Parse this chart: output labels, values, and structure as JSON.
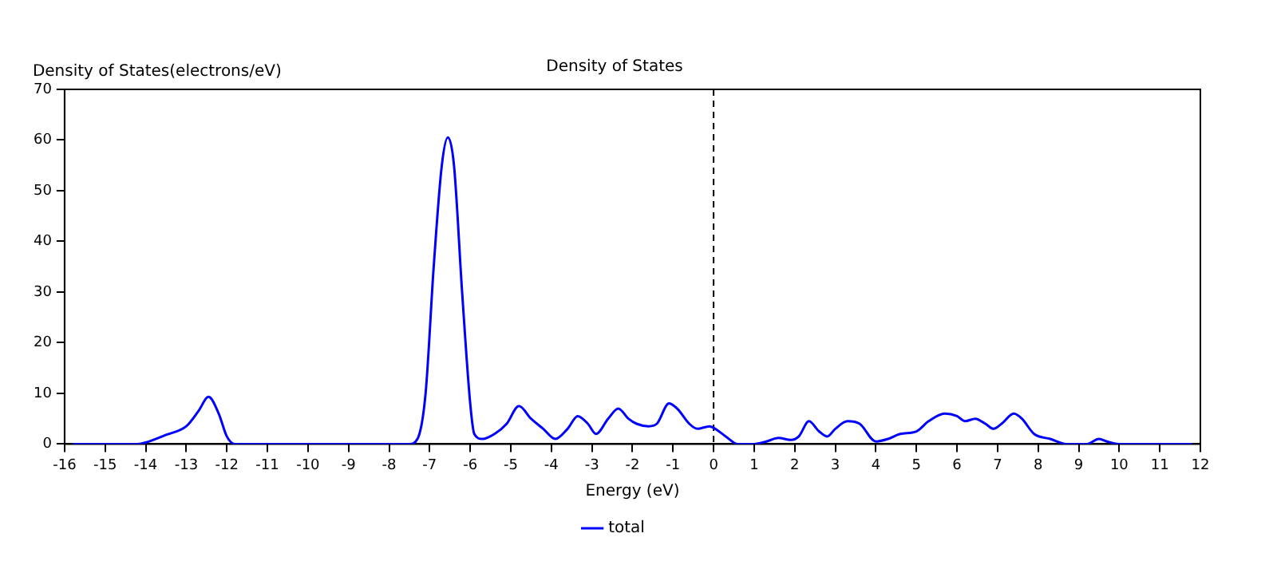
{
  "chart_data": {
    "type": "line",
    "title": "Density of States",
    "ylabel": "Density of States(electrons/eV)",
    "xlabel": "Energy (eV)",
    "xlim": [
      -16,
      12
    ],
    "xticks": [
      -16,
      -15,
      -14,
      -13,
      -12,
      -11,
      -10,
      -9,
      -8,
      -7,
      -6,
      -5,
      -4,
      -3,
      -2,
      -1,
      0,
      1,
      2,
      3,
      4,
      5,
      6,
      7,
      8,
      9,
      10,
      11,
      12
    ],
    "ylim": [
      0,
      70
    ],
    "yticks": [
      0,
      10,
      20,
      30,
      40,
      50,
      60,
      70
    ],
    "grid": false,
    "legend": "bottom",
    "marker": "none",
    "line_style": "solid",
    "ref_lines": [
      {
        "axis": "x",
        "value": 0,
        "color": "#000000",
        "line_style": "dashed"
      }
    ],
    "series": [
      {
        "name": "total",
        "color": "#0000ff",
        "x": [
          -15.8,
          -14.2,
          -14,
          -13.5,
          -13,
          -12.7,
          -12.45,
          -12.2,
          -12,
          -11.8,
          -7.5,
          -7.3,
          -7.1,
          -6.9,
          -6.7,
          -6.55,
          -6.4,
          -6.2,
          -6,
          -5.9,
          -5.7,
          -5.4,
          -5.1,
          -4.8,
          -4.5,
          -4.2,
          -3.9,
          -3.6,
          -3.35,
          -3.1,
          -2.9,
          -2.6,
          -2.35,
          -2.1,
          -1.9,
          -1.6,
          -1.4,
          -1.1,
          -0.9,
          -0.6,
          -0.4,
          -0.1,
          0,
          0.3,
          0.6,
          1,
          1.3,
          1.6,
          1.9,
          2.1,
          2.35,
          2.6,
          2.8,
          3,
          3.3,
          3.6,
          4,
          4.3,
          4.6,
          5,
          5.3,
          5.7,
          6,
          6.2,
          6.45,
          6.7,
          6.9,
          7.1,
          7.4,
          7.6,
          7.9,
          8.3,
          8.7,
          9.2,
          9.5,
          9.7,
          10,
          11.8
        ],
        "values": [
          0,
          0,
          0.3,
          1.8,
          3.5,
          6.5,
          9.3,
          6,
          1.5,
          0,
          0,
          1,
          10,
          35,
          55,
          60.5,
          55,
          30,
          8,
          2,
          1,
          2,
          4,
          7.5,
          5,
          3,
          1,
          3,
          5.5,
          4,
          2,
          5,
          7,
          5,
          4,
          3.5,
          4,
          8,
          7,
          4,
          3,
          3.5,
          3.2,
          1.5,
          0,
          0,
          0.5,
          1.2,
          0.8,
          1.5,
          4.5,
          2.5,
          1.5,
          3,
          4.5,
          4,
          0.5,
          1,
          2,
          2.5,
          4.5,
          6,
          5.5,
          4.5,
          5,
          4,
          3,
          4,
          6,
          5,
          2,
          1,
          0,
          0,
          1,
          0.5,
          0,
          0
        ]
      }
    ]
  }
}
